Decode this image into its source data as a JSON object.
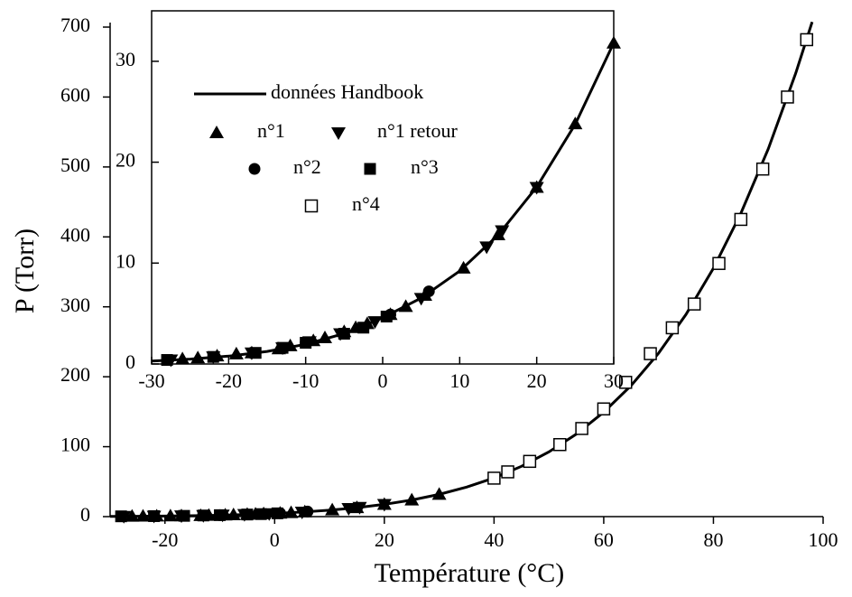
{
  "chart_data": [
    {
      "type": "scatter",
      "xlabel": "Température (°C)",
      "ylabel": "P (Torr)",
      "xlim": [
        -30,
        100
      ],
      "ylim": [
        0,
        700
      ],
      "xticks": [
        -20,
        0,
        20,
        40,
        60,
        80,
        100
      ],
      "yticks": [
        0,
        100,
        200,
        300,
        400,
        500,
        600,
        700
      ],
      "series": [
        {
          "line": true,
          "color": "#000000",
          "x": [
            -30,
            -25,
            -20,
            -15,
            -10,
            -5,
            0,
            5,
            10,
            15,
            20,
            25,
            30,
            35,
            40,
            45,
            50,
            55,
            60,
            65,
            70,
            75,
            80,
            85,
            90,
            95,
            98
          ],
          "values": [
            0.29,
            0.48,
            0.78,
            1.24,
            1.95,
            3.01,
            4.58,
            6.54,
            9.21,
            12.79,
            17.54,
            23.76,
            31.82,
            42.2,
            55.3,
            71.9,
            92.5,
            118.0,
            149.4,
            187.5,
            233.7,
            289.1,
            355.1,
            433.6,
            525.8,
            633.9,
            707.3
          ]
        },
        {
          "marker": "triangle-up",
          "color": "#000000",
          "x": [
            -26,
            -24,
            -21.5,
            -19,
            -17,
            -13.5,
            -12,
            -9,
            -7.5,
            -5,
            -3.5,
            -2,
            1,
            3,
            5.5,
            10.5,
            15,
            20,
            25,
            30
          ],
          "values": [
            0.5,
            0.6,
            0.8,
            1.0,
            1.1,
            1.5,
            1.8,
            2.3,
            2.6,
            3.2,
            3.6,
            4.0,
            4.9,
            5.7,
            6.8,
            9.5,
            12.8,
            17.5,
            23.8,
            31.8
          ]
        },
        {
          "marker": "triangle-down",
          "color": "#000000",
          "x": [
            -27.5,
            -22,
            -17,
            -13,
            -9.5,
            -5.5,
            -1,
            5,
            13.5,
            15.5,
            20
          ],
          "values": [
            0.4,
            0.7,
            1.1,
            1.6,
            2.2,
            3.0,
            4.2,
            6.5,
            11.6,
            13.2,
            17.5
          ]
        },
        {
          "marker": "circle",
          "color": "#000000",
          "x": [
            -10,
            1,
            6
          ],
          "values": [
            2.1,
            4.9,
            7.2
          ]
        },
        {
          "marker": "square",
          "color": "#000000",
          "x": [
            -28,
            -22,
            -16.5,
            -13,
            -10,
            -5,
            -2.5,
            0.5
          ],
          "values": [
            0.4,
            0.7,
            1.1,
            1.6,
            2.1,
            3.0,
            3.6,
            4.7
          ]
        },
        {
          "marker": "open-square",
          "color": "#000000",
          "x": [
            40,
            42.5,
            46.5,
            52,
            56,
            60,
            64,
            68.5,
            72.5,
            76.5,
            81,
            85,
            89,
            93.5,
            97
          ],
          "values": [
            55,
            64,
            79,
            103,
            126,
            154,
            192,
            233,
            270,
            304,
            362,
            425,
            497,
            600,
            682
          ]
        }
      ]
    },
    {
      "type": "scatter",
      "xlim": [
        -30,
        30
      ],
      "ylim": [
        0,
        35
      ],
      "xticks": [
        -30,
        -20,
        -10,
        0,
        10,
        20,
        30
      ],
      "yticks": [
        0,
        10,
        20,
        30
      ],
      "series": [
        {
          "name": "données Handbook",
          "line": true,
          "color": "#000000",
          "x": [
            -30,
            -25,
            -20,
            -15,
            -10,
            -5,
            0,
            5,
            10,
            15,
            20,
            25,
            30
          ],
          "values": [
            0.29,
            0.48,
            0.78,
            1.24,
            1.95,
            3.01,
            4.58,
            6.54,
            9.21,
            12.79,
            17.54,
            23.76,
            31.82
          ]
        },
        {
          "name": "n°1",
          "marker": "triangle-up",
          "color": "#000000",
          "x": [
            -26,
            -24,
            -21.5,
            -19,
            -17,
            -13.5,
            -12,
            -9,
            -7.5,
            -5,
            -3.5,
            -2,
            1,
            3,
            5.5,
            10.5,
            15,
            20,
            25,
            30
          ],
          "values": [
            0.5,
            0.6,
            0.8,
            1.0,
            1.1,
            1.5,
            1.8,
            2.3,
            2.6,
            3.2,
            3.6,
            4.0,
            4.9,
            5.7,
            6.8,
            9.5,
            12.8,
            17.5,
            23.8,
            31.8
          ]
        },
        {
          "name": "n°1 retour",
          "marker": "triangle-down",
          "color": "#000000",
          "x": [
            -27.5,
            -22,
            -17,
            -13,
            -9.5,
            -5.5,
            -1,
            5,
            13.5,
            15.5,
            20
          ],
          "values": [
            0.4,
            0.7,
            1.1,
            1.6,
            2.2,
            3.0,
            4.2,
            6.5,
            11.6,
            13.2,
            17.5
          ]
        },
        {
          "name": "n°2",
          "marker": "circle",
          "color": "#000000",
          "x": [
            -10,
            1,
            6
          ],
          "values": [
            2.1,
            4.9,
            7.2
          ]
        },
        {
          "name": "n°3",
          "marker": "square",
          "color": "#000000",
          "x": [
            -28,
            -22,
            -16.5,
            -13,
            -10,
            -5,
            -2.5,
            0.5
          ],
          "values": [
            0.4,
            0.7,
            1.1,
            1.6,
            2.1,
            3.0,
            3.6,
            4.7
          ]
        },
        {
          "name": "n°4",
          "marker": "open-square",
          "color": "#000000",
          "x": [],
          "values": []
        }
      ]
    }
  ]
}
